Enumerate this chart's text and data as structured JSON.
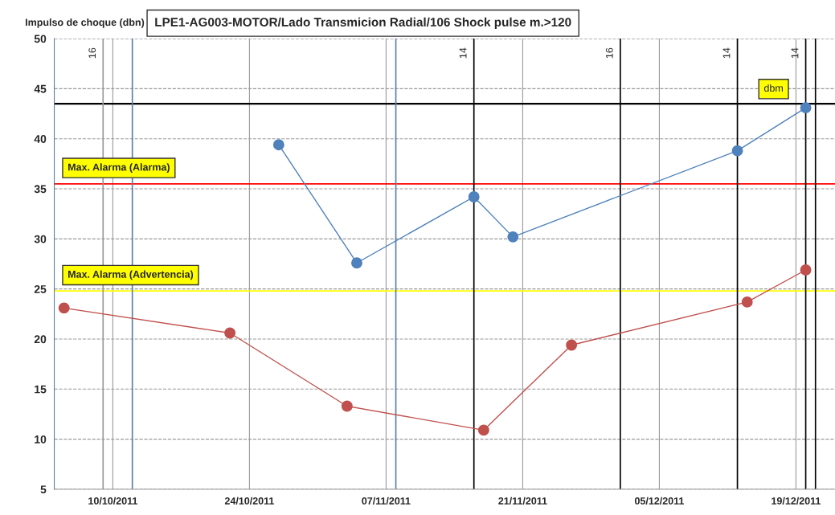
{
  "chart_data": {
    "type": "line",
    "title": "LPE1-AG003-MOTOR/Lado Transmicion Radial/106 Shock pulse m.>120",
    "ylabel": "Impulso de choque (dbn)",
    "xlim": [
      "2011-10-04",
      "2011-12-23"
    ],
    "xticks": [
      {
        "value": "2011-10-10",
        "label": "10/10/2011"
      },
      {
        "value": "2011-10-24",
        "label": "24/10/2011"
      },
      {
        "value": "2011-11-07",
        "label": "07/11/2011"
      },
      {
        "value": "2011-11-21",
        "label": "21/11/2011"
      },
      {
        "value": "2011-12-05",
        "label": "05/12/2011"
      },
      {
        "value": "2011-12-19",
        "label": "19/12/2011"
      }
    ],
    "ylim": [
      5,
      50
    ],
    "yticks": [
      5,
      10,
      15,
      20,
      25,
      30,
      35,
      40,
      45,
      50
    ],
    "grid": true,
    "marker": "circle",
    "line_style": "solid",
    "series": [
      {
        "color": "#4f81bd",
        "x": [
          "2011-10-27",
          "2011-11-04",
          "2011-11-16",
          "2011-11-20",
          "2011-12-13",
          "2011-12-20"
        ],
        "values": [
          39.4,
          27.6,
          34.2,
          30.2,
          38.8,
          43.1
        ]
      },
      {
        "color": "#c0504d",
        "x": [
          "2011-10-05",
          "2011-10-22",
          "2011-11-03",
          "2011-11-17",
          "2011-11-26",
          "2011-12-14",
          "2011-12-20"
        ],
        "values": [
          23.1,
          20.6,
          13.3,
          10.9,
          19.4,
          23.7,
          26.9
        ]
      }
    ],
    "ref_lines": [
      {
        "axis": "y",
        "value": 43.5,
        "label": "dbm",
        "color": "#000000"
      },
      {
        "axis": "y",
        "value": 35.5,
        "label": "Max. Alarma (Alarma)",
        "color": "#ff0000"
      },
      {
        "axis": "y",
        "value": 24.8,
        "label": "Max. Alarma (Advertencia)",
        "color": "#ffff00"
      },
      {
        "axis": "x",
        "value": "2011-10-09",
        "label": "16",
        "color": "#999999"
      },
      {
        "axis": "x",
        "value": "2011-10-12",
        "label": null,
        "color": "#5b7fa8"
      },
      {
        "axis": "x",
        "value": "2011-11-08",
        "label": null,
        "color": "#5b7fa8"
      },
      {
        "axis": "x",
        "value": "2011-11-16",
        "label": "14",
        "color": "#000000"
      },
      {
        "axis": "x",
        "value": "2011-12-01",
        "label": "16",
        "color": "#000000"
      },
      {
        "axis": "x",
        "value": "2011-12-13",
        "label": "14",
        "color": "#000000"
      },
      {
        "axis": "x",
        "value": "2011-12-20",
        "label": "14",
        "color": "#000000"
      },
      {
        "axis": "x",
        "value": "2011-12-21",
        "label": null,
        "color": "#000000"
      }
    ]
  }
}
